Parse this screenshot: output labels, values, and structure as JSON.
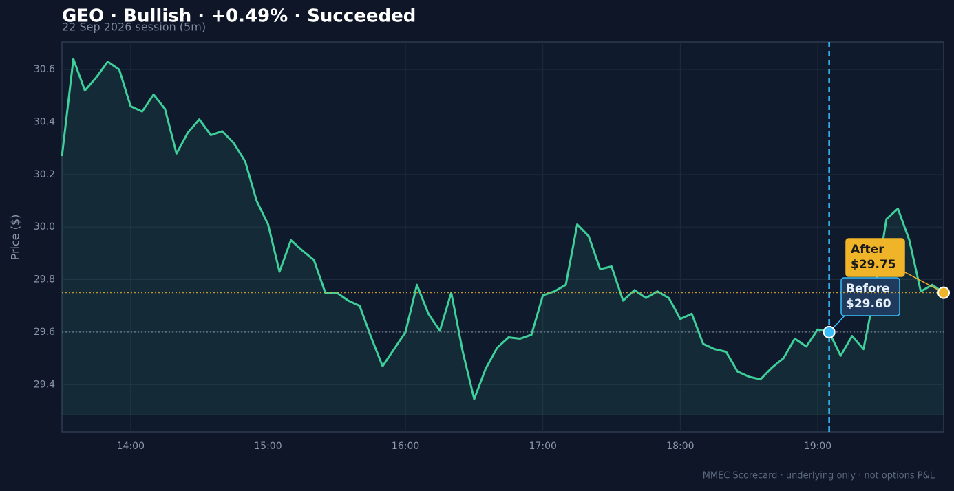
{
  "chart_data": {
    "type": "line",
    "title": "GEO · Bullish · +0.49% · Succeeded",
    "subtitle": "22 Sep 2026 session (5m)",
    "y_label": "Price ($)",
    "footer": "MMEC Scorecard · underlying only · not options P&L",
    "x": [
      "13:30",
      "13:35",
      "13:40",
      "13:45",
      "13:50",
      "13:55",
      "14:00",
      "14:05",
      "14:10",
      "14:15",
      "14:20",
      "14:25",
      "14:30",
      "14:35",
      "14:40",
      "14:45",
      "14:50",
      "14:55",
      "15:00",
      "15:05",
      "15:10",
      "15:15",
      "15:20",
      "15:25",
      "15:30",
      "15:35",
      "15:40",
      "15:45",
      "15:50",
      "15:55",
      "16:00",
      "16:05",
      "16:10",
      "16:15",
      "16:20",
      "16:25",
      "16:30",
      "16:35",
      "16:40",
      "16:45",
      "16:50",
      "16:55",
      "17:00",
      "17:05",
      "17:10",
      "17:15",
      "17:20",
      "17:25",
      "17:30",
      "17:35",
      "17:40",
      "17:45",
      "17:50",
      "17:55",
      "18:00",
      "18:05",
      "18:10",
      "18:15",
      "18:20",
      "18:25",
      "18:30",
      "18:35",
      "18:40",
      "18:45",
      "18:50",
      "18:55",
      "19:00",
      "19:05",
      "19:10",
      "19:15",
      "19:20",
      "19:25",
      "19:30",
      "19:35",
      "19:40",
      "19:45",
      "19:50",
      "19:55"
    ],
    "series": [
      {
        "color": "#3ecf9a",
        "values": [
          30.27,
          30.64,
          30.52,
          30.57,
          30.63,
          30.6,
          30.46,
          30.44,
          30.505,
          30.45,
          30.28,
          30.36,
          30.41,
          30.35,
          30.365,
          30.32,
          30.25,
          30.1,
          30.01,
          29.83,
          29.95,
          29.91,
          29.875,
          29.75,
          29.75,
          29.72,
          29.7,
          29.58,
          29.47,
          29.535,
          29.6,
          29.78,
          29.67,
          29.605,
          29.75,
          29.525,
          29.345,
          29.46,
          29.54,
          29.58,
          29.575,
          29.59,
          29.74,
          29.755,
          29.78,
          30.01,
          29.965,
          29.84,
          29.85,
          29.72,
          29.76,
          29.73,
          29.755,
          29.73,
          29.65,
          29.67,
          29.555,
          29.535,
          29.525,
          29.45,
          29.43,
          29.42,
          29.465,
          29.5,
          29.575,
          29.545,
          29.61,
          29.6,
          29.51,
          29.585,
          29.535,
          29.755,
          30.03,
          30.07,
          29.95,
          29.755,
          29.78,
          29.75
        ]
      }
    ],
    "annotations": [
      {
        "label": "Before",
        "x": "19:05",
        "value": 29.6,
        "value_label": "$29.60",
        "color": "#38bdf8"
      },
      {
        "label": "After",
        "x": "19:55",
        "value": 29.75,
        "value_label": "$29.75",
        "color": "#f0b429"
      }
    ],
    "xlim": [
      "13:30",
      "19:55"
    ],
    "xticks": [
      "14:00",
      "15:00",
      "16:00",
      "17:00",
      "18:00",
      "19:00"
    ],
    "ylim": [
      29.22,
      30.705
    ],
    "yticks": [
      29.4,
      29.6,
      29.8,
      {
        "value": 30,
        "label": "30.0"
      },
      30.2,
      30.4,
      30.6
    ],
    "grid": true
  }
}
